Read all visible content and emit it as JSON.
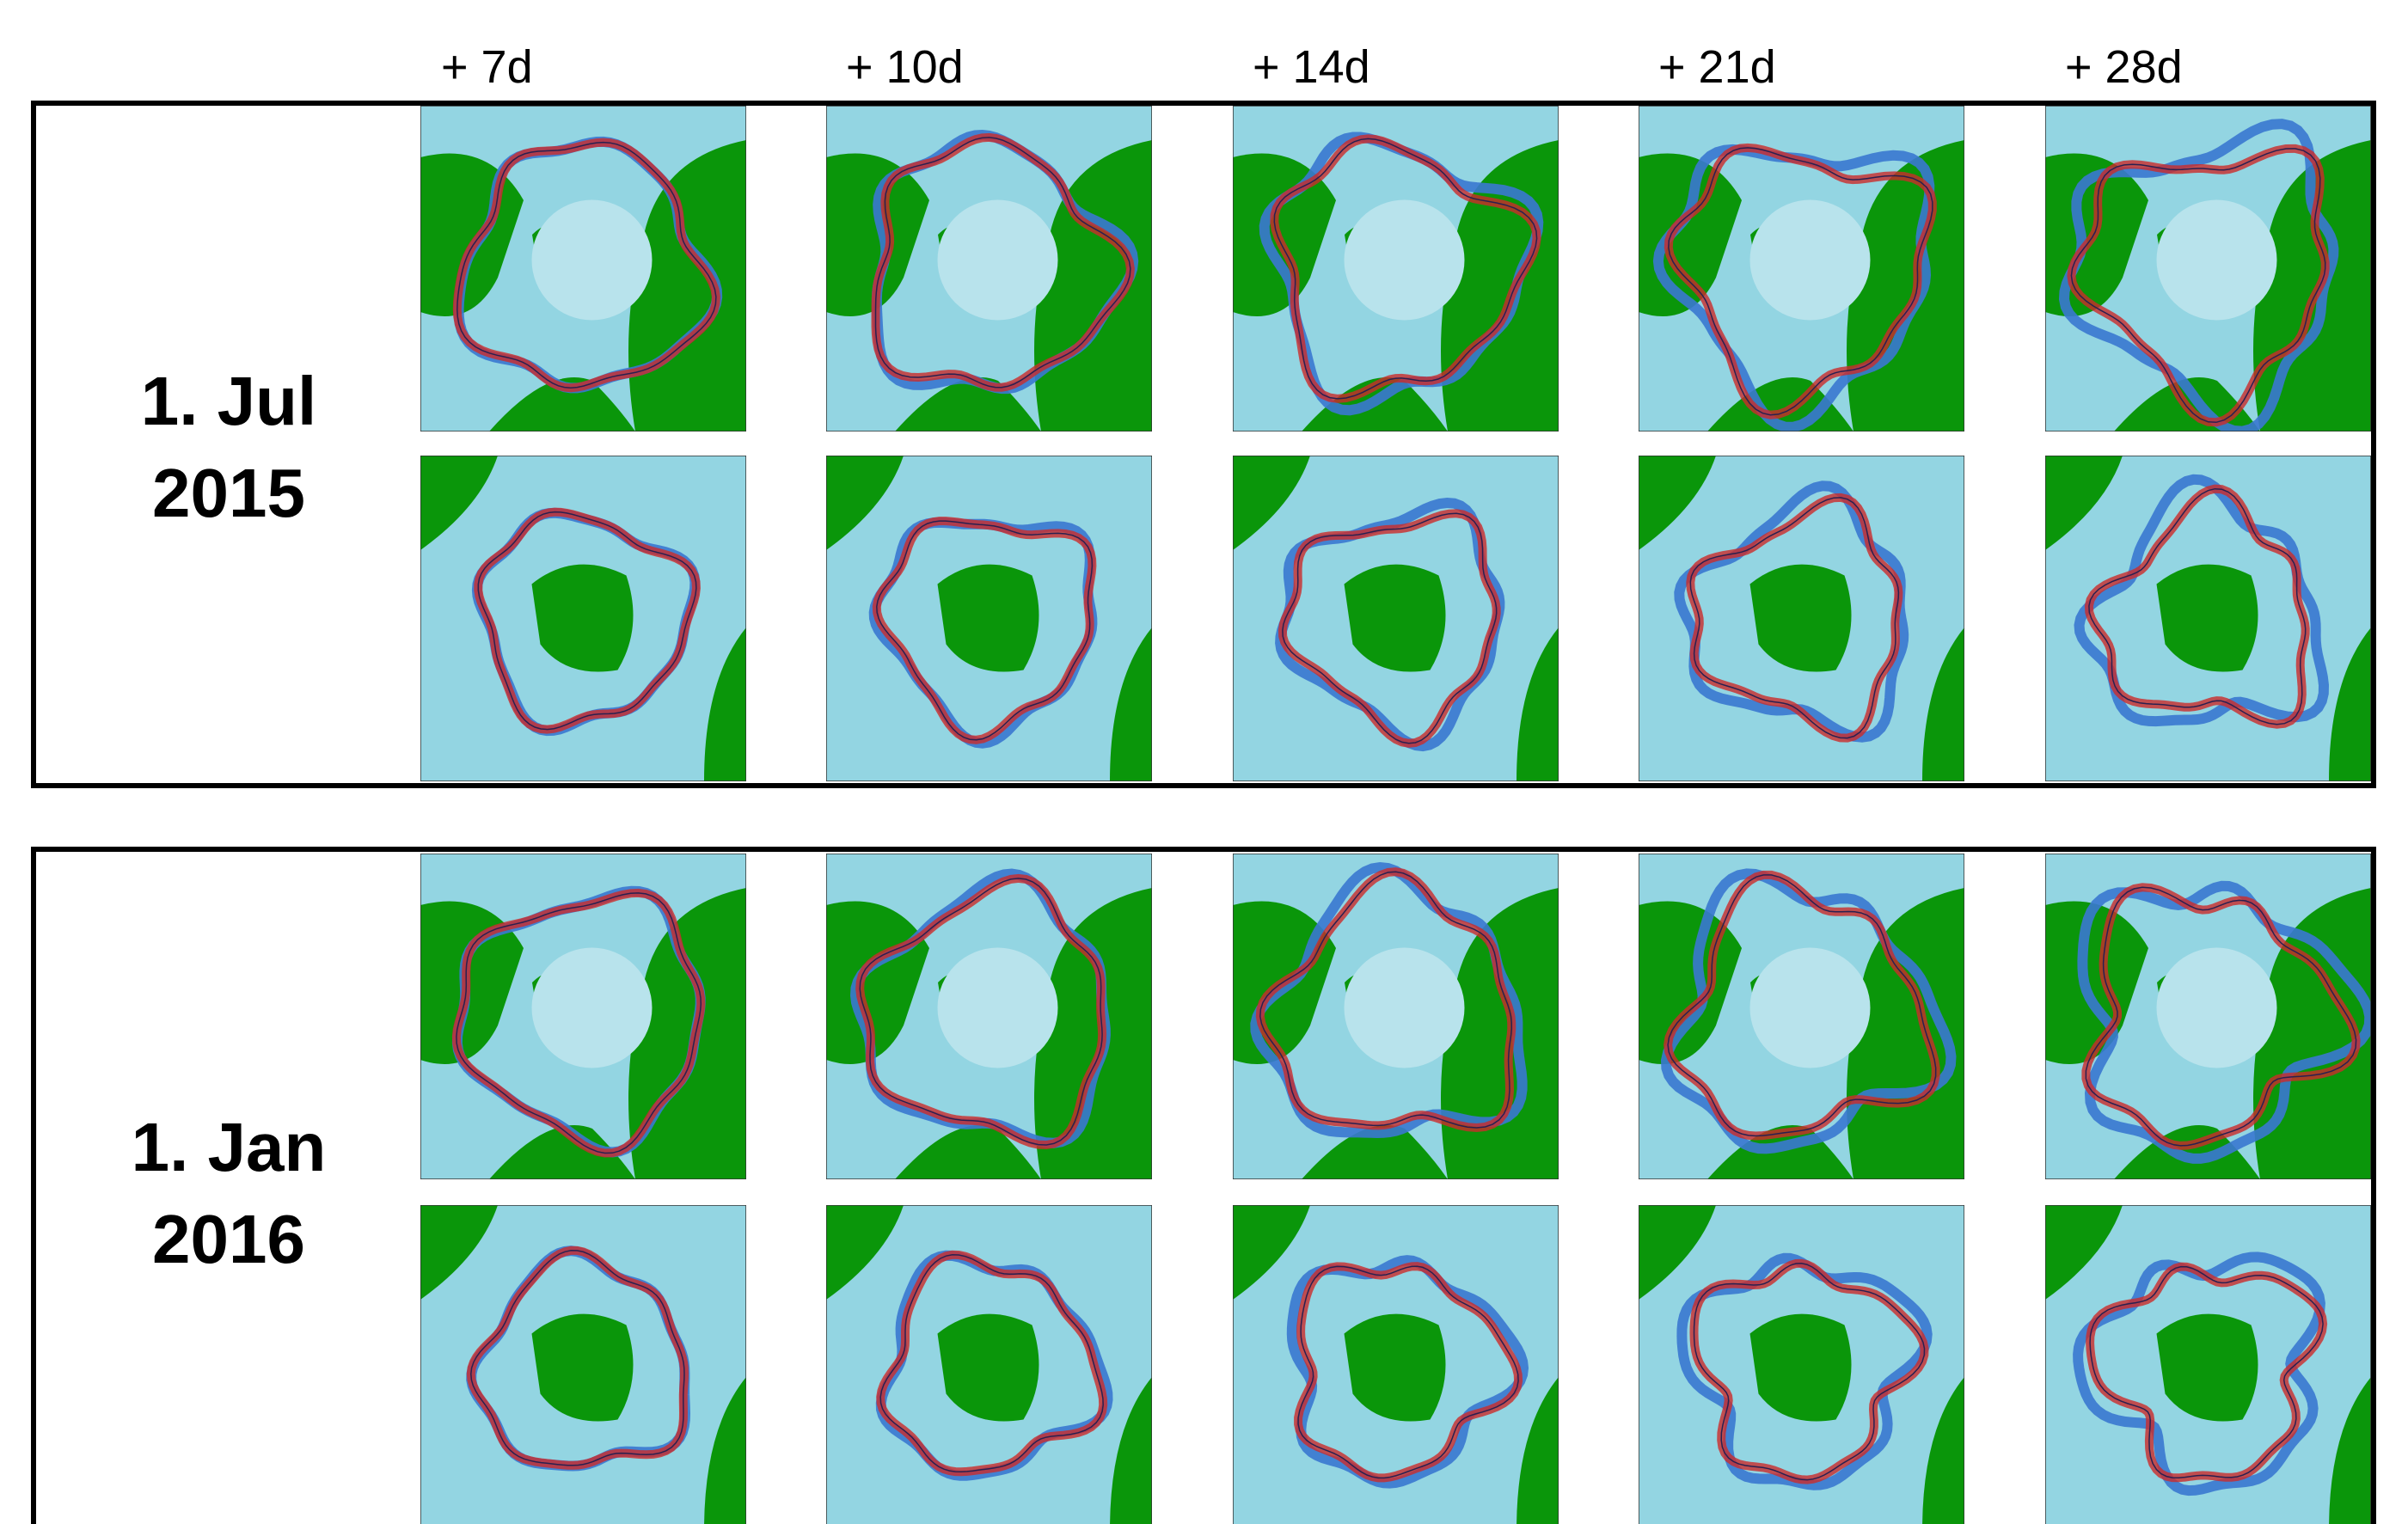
{
  "columns": [
    "+ 7d",
    "+ 10d",
    "+ 14d",
    "+ 21d",
    "+ 28d"
  ],
  "rows": [
    {
      "line1": "1. Jul",
      "line2": "2015"
    },
    {
      "line1": "1. Jan",
      "line2": "2016"
    }
  ]
}
